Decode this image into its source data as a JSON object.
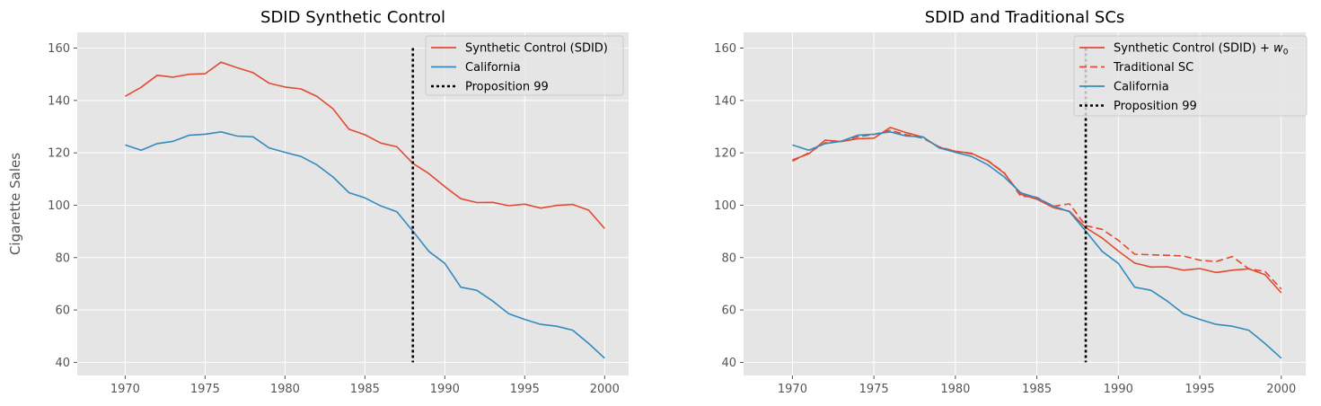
{
  "chart_data": [
    {
      "type": "line",
      "title": "SDID Synthetic Control",
      "xlabel": "",
      "ylabel": "Cigarette Sales",
      "xlim": [
        1967,
        2001.5
      ],
      "ylim": [
        35,
        166
      ],
      "xticks": [
        1970,
        1975,
        1980,
        1985,
        1990,
        1995,
        2000
      ],
      "yticks": [
        40,
        60,
        80,
        100,
        120,
        140,
        160
      ],
      "grid": true,
      "legend_position": "top-right",
      "x": [
        1970,
        1971,
        1972,
        1973,
        1974,
        1975,
        1976,
        1977,
        1978,
        1979,
        1980,
        1981,
        1982,
        1983,
        1984,
        1985,
        1986,
        1987,
        1988,
        1989,
        1990,
        1991,
        1992,
        1993,
        1994,
        1995,
        1996,
        1997,
        1998,
        1999,
        2000
      ],
      "series": [
        {
          "name": "Synthetic Control (SDID)",
          "color": "#E24A33",
          "style": "solid",
          "values": [
            141.6,
            145.0,
            149.6,
            148.9,
            150.0,
            150.2,
            154.6,
            152.5,
            150.6,
            146.6,
            145.1,
            144.4,
            141.5,
            136.8,
            129.0,
            126.9,
            123.7,
            122.3,
            116.0,
            112.1,
            107.1,
            102.5,
            101.0,
            101.1,
            99.8,
            100.4,
            98.9,
            99.9,
            100.3,
            98.1,
            91.1
          ]
        },
        {
          "name": "California",
          "color": "#348ABD",
          "style": "solid",
          "values": [
            123.0,
            121.0,
            123.5,
            124.4,
            126.7,
            127.1,
            128.0,
            126.4,
            126.1,
            121.9,
            120.2,
            118.6,
            115.4,
            110.8,
            104.8,
            102.8,
            99.7,
            97.5,
            90.1,
            82.4,
            77.8,
            68.7,
            67.5,
            63.4,
            58.6,
            56.4,
            54.5,
            53.8,
            52.3,
            47.2,
            41.6
          ]
        }
      ],
      "vlines": [
        {
          "name": "Proposition 99",
          "x": 1988,
          "y_range": [
            40,
            160
          ],
          "color": "#000000",
          "style": "dotted"
        }
      ]
    },
    {
      "type": "line",
      "title": "SDID and Traditional SCs",
      "xlabel": "",
      "ylabel": "",
      "xlim": [
        1967,
        2001.5
      ],
      "ylim": [
        35,
        166
      ],
      "xticks": [
        1970,
        1975,
        1980,
        1985,
        1990,
        1995,
        2000
      ],
      "yticks": [
        40,
        60,
        80,
        100,
        120,
        140,
        160
      ],
      "grid": true,
      "legend_position": "top-right",
      "x": [
        1970,
        1971,
        1972,
        1973,
        1974,
        1975,
        1976,
        1977,
        1978,
        1979,
        1980,
        1981,
        1982,
        1983,
        1984,
        1985,
        1986,
        1987,
        1988,
        1989,
        1990,
        1991,
        1992,
        1993,
        1994,
        1995,
        1996,
        1997,
        1998,
        1999,
        2000
      ],
      "series": [
        {
          "name": "Synthetic Control (SDID) + w0",
          "legend_main": "Synthetic Control (SDID) + ",
          "legend_math": "w",
          "legend_sub": "0",
          "color": "#E24A33",
          "style": "solid",
          "values": [
            117.3,
            119.6,
            124.8,
            124.3,
            125.4,
            125.6,
            129.7,
            127.7,
            126.0,
            122.1,
            120.6,
            119.8,
            116.9,
            112.2,
            104.2,
            102.3,
            99.1,
            97.7,
            91.4,
            87.5,
            82.5,
            77.9,
            76.4,
            76.5,
            75.2,
            75.8,
            74.3,
            75.2,
            75.7,
            73.5,
            66.5
          ]
        },
        {
          "name": "Traditional SC",
          "color": "#E24A33",
          "style": "dashed",
          "values": [
            116.8,
            120.0,
            123.8,
            124.5,
            126.1,
            127.0,
            128.6,
            126.9,
            125.6,
            122.3,
            120.6,
            119.6,
            117.0,
            112.4,
            103.5,
            103.0,
            99.6,
            100.5,
            92.2,
            90.8,
            86.6,
            81.3,
            81.1,
            80.9,
            80.6,
            79.0,
            78.5,
            80.4,
            75.7,
            74.7,
            68.0
          ]
        },
        {
          "name": "California",
          "color": "#348ABD",
          "style": "solid",
          "values": [
            123.0,
            121.0,
            123.5,
            124.4,
            126.7,
            127.1,
            128.0,
            126.4,
            126.1,
            121.9,
            120.2,
            118.6,
            115.4,
            110.8,
            104.8,
            102.8,
            99.7,
            97.5,
            90.1,
            82.4,
            77.8,
            68.7,
            67.5,
            63.4,
            58.6,
            56.4,
            54.5,
            53.8,
            52.3,
            47.2,
            41.6
          ]
        }
      ],
      "vlines": [
        {
          "name": "Proposition 99",
          "x": 1988,
          "y_range": [
            40,
            160
          ],
          "color": "#000000",
          "style": "dotted"
        }
      ]
    }
  ]
}
